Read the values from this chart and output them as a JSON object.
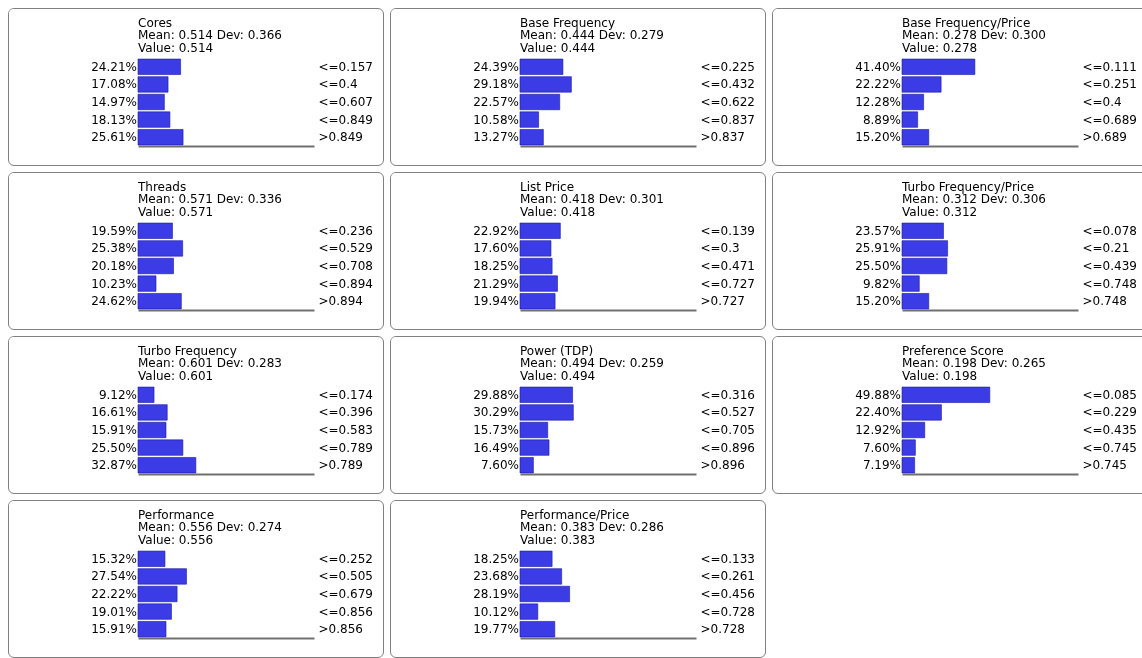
{
  "chart_data": [
    {
      "type": "bar",
      "orientation": "horizontal",
      "tick_labels": "y",
      "color": "#3c3ce6",
      "title": "Cores",
      "subtitle": "Mean: 0.514 Dev: 0.366",
      "annotations": [
        "Value: 0.514"
      ],
      "categories": [
        "<=0.157",
        "<=0.4",
        "<=0.607",
        "<=0.849",
        ">0.849"
      ],
      "values": [
        24.21,
        17.08,
        14.97,
        18.13,
        25.61
      ],
      "value_labels": [
        "24.21%",
        "17.08%",
        "14.97%",
        "18.13%",
        "25.61%"
      ]
    },
    {
      "type": "bar",
      "orientation": "horizontal",
      "tick_labels": "y",
      "color": "#3c3ce6",
      "title": "Base Frequency",
      "subtitle": "Mean: 0.444 Dev: 0.279",
      "annotations": [
        "Value: 0.444"
      ],
      "categories": [
        "<=0.225",
        "<=0.432",
        "<=0.622",
        "<=0.837",
        ">0.837"
      ],
      "values": [
        24.39,
        29.18,
        22.57,
        10.58,
        13.27
      ],
      "value_labels": [
        "24.39%",
        "29.18%",
        "22.57%",
        "10.58%",
        "13.27%"
      ]
    },
    {
      "type": "bar",
      "orientation": "horizontal",
      "tick_labels": "y",
      "color": "#3c3ce6",
      "title": "Base Frequency/Price",
      "subtitle": "Mean: 0.278 Dev: 0.300",
      "annotations": [
        "Value: 0.278"
      ],
      "categories": [
        "<=0.111",
        "<=0.251",
        "<=0.4",
        "<=0.689",
        ">0.689"
      ],
      "values": [
        41.4,
        22.22,
        12.28,
        8.89,
        15.2
      ],
      "value_labels": [
        "41.40%",
        "22.22%",
        "12.28%",
        "8.89%",
        "15.20%"
      ]
    },
    {
      "type": "bar",
      "orientation": "horizontal",
      "tick_labels": "y",
      "color": "#3c3ce6",
      "title": "Threads",
      "subtitle": "Mean: 0.571 Dev: 0.336",
      "annotations": [
        "Value: 0.571"
      ],
      "categories": [
        "<=0.236",
        "<=0.529",
        "<=0.708",
        "<=0.894",
        ">0.894"
      ],
      "values": [
        19.59,
        25.38,
        20.18,
        10.23,
        24.62
      ],
      "value_labels": [
        "19.59%",
        "25.38%",
        "20.18%",
        "10.23%",
        "24.62%"
      ]
    },
    {
      "type": "bar",
      "orientation": "horizontal",
      "tick_labels": "y",
      "color": "#3c3ce6",
      "title": "List Price",
      "subtitle": "Mean: 0.418 Dev: 0.301",
      "annotations": [
        "Value: 0.418"
      ],
      "categories": [
        "<=0.139",
        "<=0.3",
        "<=0.471",
        "<=0.727",
        ">0.727"
      ],
      "values": [
        22.92,
        17.6,
        18.25,
        21.29,
        19.94
      ],
      "value_labels": [
        "22.92%",
        "17.60%",
        "18.25%",
        "21.29%",
        "19.94%"
      ]
    },
    {
      "type": "bar",
      "orientation": "horizontal",
      "tick_labels": "y",
      "color": "#3c3ce6",
      "title": "Turbo Frequency/Price",
      "subtitle": "Mean: 0.312 Dev: 0.306",
      "annotations": [
        "Value: 0.312"
      ],
      "categories": [
        "<=0.078",
        "<=0.21",
        "<=0.439",
        "<=0.748",
        ">0.748"
      ],
      "values": [
        23.57,
        25.91,
        25.5,
        9.82,
        15.2
      ],
      "value_labels": [
        "23.57%",
        "25.91%",
        "25.50%",
        "9.82%",
        "15.20%"
      ]
    },
    {
      "type": "bar",
      "orientation": "horizontal",
      "tick_labels": "y",
      "color": "#3c3ce6",
      "title": "Turbo Frequency",
      "subtitle": "Mean: 0.601 Dev: 0.283",
      "annotations": [
        "Value: 0.601"
      ],
      "categories": [
        "<=0.174",
        "<=0.396",
        "<=0.583",
        "<=0.789",
        ">0.789"
      ],
      "values": [
        9.12,
        16.61,
        15.91,
        25.5,
        32.87
      ],
      "value_labels": [
        "9.12%",
        "16.61%",
        "15.91%",
        "25.50%",
        "32.87%"
      ]
    },
    {
      "type": "bar",
      "orientation": "horizontal",
      "tick_labels": "y",
      "color": "#3c3ce6",
      "title": "Power (TDP)",
      "subtitle": "Mean: 0.494 Dev: 0.259",
      "annotations": [
        "Value: 0.494"
      ],
      "categories": [
        "<=0.316",
        "<=0.527",
        "<=0.705",
        "<=0.896",
        ">0.896"
      ],
      "values": [
        29.88,
        30.29,
        15.73,
        16.49,
        7.6
      ],
      "value_labels": [
        "29.88%",
        "30.29%",
        "15.73%",
        "16.49%",
        "7.60%"
      ]
    },
    {
      "type": "bar",
      "orientation": "horizontal",
      "tick_labels": "y",
      "color": "#3c3ce6",
      "title": "Preference Score",
      "subtitle": "Mean: 0.198 Dev: 0.265",
      "annotations": [
        "Value: 0.198"
      ],
      "categories": [
        "<=0.085",
        "<=0.229",
        "<=0.435",
        "<=0.745",
        ">0.745"
      ],
      "values": [
        49.88,
        22.4,
        12.92,
        7.6,
        7.19
      ],
      "value_labels": [
        "49.88%",
        "22.40%",
        "12.92%",
        "7.60%",
        "7.19%"
      ]
    },
    {
      "type": "bar",
      "orientation": "horizontal",
      "tick_labels": "y",
      "color": "#3c3ce6",
      "title": "Performance",
      "subtitle": "Mean: 0.556 Dev: 0.274",
      "annotations": [
        "Value: 0.556"
      ],
      "categories": [
        "<=0.252",
        "<=0.505",
        "<=0.679",
        "<=0.856",
        ">0.856"
      ],
      "values": [
        15.32,
        27.54,
        22.22,
        19.01,
        15.91
      ],
      "value_labels": [
        "15.32%",
        "27.54%",
        "22.22%",
        "19.01%",
        "15.91%"
      ]
    },
    {
      "type": "bar",
      "orientation": "horizontal",
      "tick_labels": "y",
      "color": "#3c3ce6",
      "title": "Performance/Price",
      "subtitle": "Mean: 0.383 Dev: 0.286",
      "annotations": [
        "Value: 0.383"
      ],
      "categories": [
        "<=0.133",
        "<=0.261",
        "<=0.456",
        "<=0.728",
        ">0.728"
      ],
      "values": [
        18.25,
        23.68,
        28.19,
        10.12,
        19.77
      ],
      "value_labels": [
        "18.25%",
        "23.68%",
        "28.19%",
        "10.12%",
        "19.77%"
      ]
    }
  ]
}
